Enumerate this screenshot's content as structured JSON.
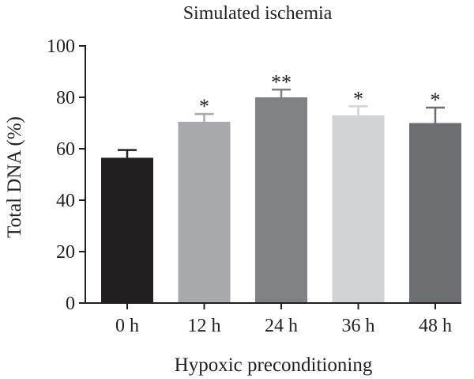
{
  "chart_data": {
    "type": "bar",
    "title": "Simulated ischemia",
    "xlabel": "Hypoxic preconditioning",
    "ylabel": "Total DNA (%)",
    "ylim": [
      0,
      100
    ],
    "yticks": [
      0,
      20,
      40,
      60,
      80,
      100
    ],
    "categories": [
      "0 h",
      "12 h",
      "24 h",
      "36 h",
      "48 h"
    ],
    "values": [
      56.5,
      70.5,
      80,
      73,
      70
    ],
    "error": [
      3,
      3,
      3,
      3.5,
      6
    ],
    "significance": [
      "",
      "*",
      "**",
      "*",
      "*"
    ],
    "colors": [
      "#231f20",
      "#a7a9ac",
      "#808285",
      "#d1d3d4",
      "#6d6e71"
    ],
    "grid": false
  }
}
